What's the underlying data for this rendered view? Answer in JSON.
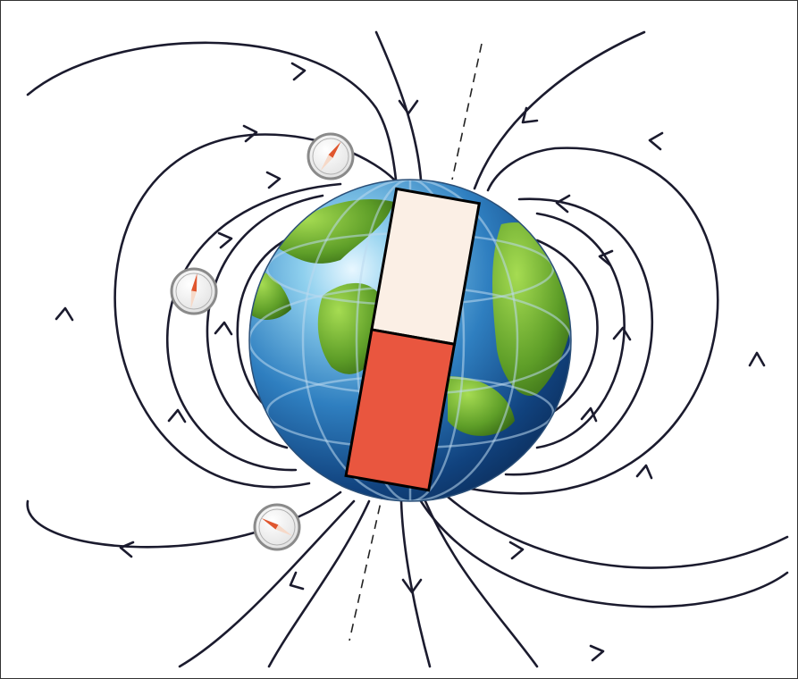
{
  "diagram": {
    "colors": {
      "field_line": "#1b1b2e",
      "axis_dash": "#222222",
      "magnet_south_top": "#fbefe5",
      "magnet_north_bottom": "#e9563f",
      "ocean_light": "#8fd0ee",
      "ocean_dark": "#0b2a55",
      "land": "#6aae2e",
      "compass_needle": "#e0562e"
    },
    "elements": [
      "earth-globe",
      "bar-magnet",
      "magnetic-axis",
      "field-lines",
      "compass-1",
      "compass-2",
      "compass-3"
    ]
  }
}
